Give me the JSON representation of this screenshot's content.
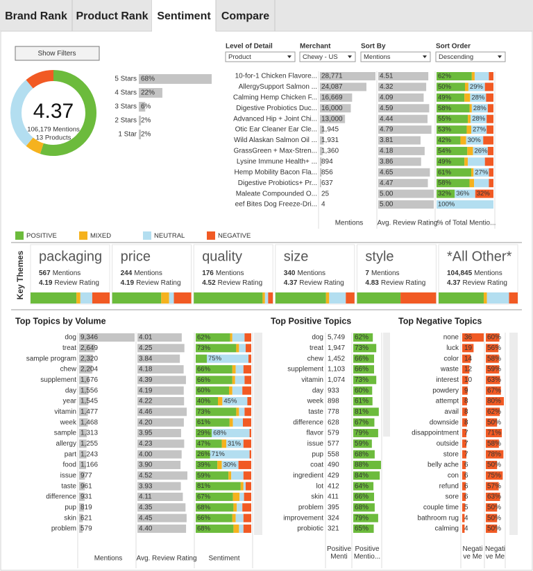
{
  "tabs": [
    "Brand Rank",
    "Product Rank",
    "Sentiment",
    "Compare"
  ],
  "active_tab": 2,
  "filters_button": "Show Filters",
  "summary": {
    "rating": 4.37,
    "mentions_text": "106,179 Mentions",
    "products_text": "13 Products",
    "sentiment": [
      55,
      6,
      28,
      11
    ]
  },
  "stars": {
    "categories": [
      "5 Stars",
      "4 Stars",
      "3 Stars",
      "2 Stars",
      "1 Star"
    ],
    "values": [
      68,
      22,
      6,
      2,
      2
    ],
    "value_labels": [
      "68%",
      "22%",
      "6%",
      "2%",
      "2%"
    ]
  },
  "filters": [
    {
      "label": "Level of Detail",
      "value": "Product"
    },
    {
      "label": "Merchant",
      "value": "Chewy - US"
    },
    {
      "label": "Sort By",
      "value": "Mentions"
    },
    {
      "label": "Sort Order",
      "value": "Descending"
    }
  ],
  "products": {
    "names": [
      "10-for-1 Chicken Flavore...",
      "AllergySupport Salmon ...",
      "Calming Hemp Chicken F...",
      "Digestive Probiotics Duc...",
      "Advanced Hip + Joint Chi...",
      "Otic Ear Cleaner Ear Cle...",
      "Wild Alaskan Salmon Oil ...",
      "GrassGreen + Max-Stren...",
      "Lysine Immune Health+ ...",
      "Hemp Mobility Bacon Fla...",
      "Digestive Probiotics+ Pr...",
      "Maleate Compounded O...",
      "eef Bites Dog Freeze-Dri..."
    ],
    "mentions": {
      "values": [
        28771,
        24087,
        16669,
        16000,
        13000,
        1945,
        1931,
        1360,
        894,
        856,
        637,
        25,
        4
      ],
      "value_labels": [
        "28,771",
        "24,087",
        "16,669",
        "16,000",
        "13,000",
        "1,945",
        "1,931",
        "1,360",
        "894",
        "856",
        "637",
        "25",
        "4"
      ]
    },
    "ratings": {
      "values": [
        4.51,
        4.32,
        4.09,
        4.59,
        4.44,
        4.79,
        3.81,
        4.18,
        3.86,
        4.65,
        4.47,
        5.0,
        5.0
      ],
      "value_labels": [
        "4.51",
        "4.32",
        "4.09",
        "4.59",
        "4.44",
        "4.79",
        "3.81",
        "4.18",
        "3.86",
        "4.65",
        "4.47",
        "5.00",
        "5.00"
      ]
    },
    "sentiment": [
      {
        "values": [
          62,
          50,
          49,
          58,
          55,
          53,
          42,
          54,
          49,
          61,
          58,
          32,
          0
        ],
        "value_labels": [
          "62%",
          "50%",
          "49%",
          "58%",
          "55%",
          "53%",
          "42%",
          "54%",
          "49%",
          "61%",
          "58%",
          "32%",
          null
        ]
      },
      {
        "values": [
          5,
          6,
          10,
          4,
          5,
          8,
          10,
          10,
          6,
          4,
          8,
          0,
          0
        ]
      },
      {
        "values": [
          25,
          29,
          28,
          28,
          28,
          27,
          30,
          26,
          30,
          27,
          26,
          36,
          100
        ],
        "value_labels": [
          null,
          "29%",
          "28%",
          "28%",
          "28%",
          "27%",
          "30%",
          "26%",
          null,
          "27%",
          null,
          "36%",
          "100%"
        ]
      },
      {
        "values": [
          8,
          15,
          13,
          10,
          12,
          12,
          18,
          10,
          15,
          8,
          8,
          32,
          0
        ],
        "value_labels": [
          null,
          null,
          null,
          null,
          null,
          null,
          null,
          null,
          null,
          null,
          null,
          "32%",
          null
        ]
      }
    ],
    "headers": [
      "Mentions",
      "Avg. Review Rating",
      "% of Total Mentio..."
    ]
  },
  "legend": [
    {
      "name": "POSITIVE",
      "color": "#6cbb3c"
    },
    {
      "name": "MIXED",
      "color": "#f5b21e"
    },
    {
      "name": "NEUTRAL",
      "color": "#b3def0"
    },
    {
      "name": "NEGATIVE",
      "color": "#f15a24"
    }
  ],
  "themes": {
    "title": "Key Themes",
    "mentions_label": "Mentions",
    "rating_label": "Review Rating",
    "items": [
      {
        "name": "packaging",
        "mentions": 567,
        "rating": 4.19,
        "sentiment": [
          58,
          5,
          15,
          22
        ]
      },
      {
        "name": "price",
        "mentions": 244,
        "rating": 4.19,
        "sentiment": [
          62,
          10,
          6,
          22
        ]
      },
      {
        "name": "quality",
        "mentions": 176,
        "rating": 4.52,
        "sentiment": [
          87,
          3,
          4,
          6
        ]
      },
      {
        "name": "size",
        "mentions": 340,
        "rating": 4.37,
        "sentiment": [
          64,
          4,
          21,
          11
        ]
      },
      {
        "name": "style",
        "mentions": 7,
        "rating": 4.83,
        "sentiment": [
          55,
          0,
          0,
          45
        ]
      },
      {
        "name": "*All Other*",
        "mentions": 104845,
        "mentions_value_label": "104,845",
        "rating": 4.37,
        "sentiment": [
          57,
          4,
          28,
          11
        ]
      }
    ]
  },
  "volume": {
    "title": "Top Topics by Volume",
    "categories": [
      "dog",
      "treat",
      "sample program",
      "chew",
      "supplement",
      "day",
      "year",
      "vitamin",
      "week",
      "sample",
      "allergy",
      "part",
      "food",
      "issue",
      "taste",
      "difference",
      "pup",
      "skin",
      "problem"
    ],
    "mentions": {
      "values": [
        9346,
        2649,
        2320,
        2204,
        1676,
        1556,
        1545,
        1477,
        1468,
        1313,
        1255,
        1243,
        1166,
        977,
        961,
        931,
        819,
        621,
        579
      ],
      "value_labels": [
        "9,346",
        "2,649",
        "2,320",
        "2,204",
        "1,676",
        "1,556",
        "1,545",
        "1,477",
        "1,468",
        "1,313",
        "1,255",
        "1,243",
        "1,166",
        "977",
        "961",
        "931",
        "819",
        "621",
        "579"
      ]
    },
    "ratings": {
      "values": [
        4.01,
        4.25,
        3.84,
        4.18,
        4.39,
        4.19,
        4.22,
        4.46,
        4.2,
        3.95,
        4.23,
        4.0,
        3.9,
        4.52,
        3.93,
        4.11,
        4.35,
        4.45,
        4.4
      ],
      "value_labels": [
        "4.01",
        "4.25",
        "3.84",
        "4.18",
        "4.39",
        "4.19",
        "4.22",
        "4.46",
        "4.20",
        "3.95",
        "4.23",
        "4.00",
        "3.90",
        "4.52",
        "3.93",
        "4.11",
        "4.35",
        "4.45",
        "4.40"
      ]
    },
    "sentiment": [
      {
        "values": [
          62,
          73,
          20,
          66,
          66,
          60,
          40,
          73,
          61,
          29,
          47,
          26,
          39,
          59,
          81,
          67,
          68,
          66,
          68
        ],
        "value_labels": [
          "62%",
          "73%",
          null,
          "66%",
          "66%",
          "60%",
          "40%",
          "73%",
          "61%",
          "29%",
          "47%",
          "26%",
          "39%",
          "59%",
          "81%",
          "67%",
          "68%",
          "66%",
          "68%"
        ]
      },
      {
        "values": [
          4,
          5,
          0,
          6,
          5,
          6,
          8,
          5,
          6,
          0,
          8,
          0,
          8,
          5,
          5,
          12,
          6,
          6,
          10
        ]
      },
      {
        "values": [
          22,
          12,
          75,
          14,
          17,
          18,
          45,
          10,
          18,
          68,
          31,
          71,
          30,
          22,
          4,
          8,
          10,
          14,
          8
        ],
        "value_labels": [
          null,
          null,
          "75%",
          null,
          null,
          null,
          "45%",
          null,
          null,
          "68%",
          "31%",
          "71%",
          "30%",
          null,
          null,
          null,
          null,
          null,
          null
        ]
      },
      {
        "values": [
          12,
          10,
          5,
          14,
          12,
          16,
          7,
          12,
          15,
          3,
          14,
          3,
          23,
          14,
          10,
          13,
          16,
          14,
          14
        ]
      }
    ],
    "headers": [
      "Mentions",
      "Avg. Review Rating",
      "Sentiment"
    ]
  },
  "positive": {
    "title": "Top Positive Topics",
    "categories": [
      "dog",
      "treat",
      "chew",
      "supplement",
      "vitamin",
      "day",
      "week",
      "taste",
      "difference",
      "flavor",
      "issue",
      "pup",
      "coat",
      "ingredient",
      "lot",
      "skin",
      "problem",
      "improvement",
      "probiotic"
    ],
    "mentions": {
      "values": [
        5749,
        1947,
        1452,
        1103,
        1074,
        933,
        898,
        778,
        628,
        579,
        577,
        558,
        490,
        429,
        412,
        411,
        395,
        324,
        321
      ],
      "value_labels": [
        "5,749",
        "1,947",
        "1,452",
        "1,103",
        "1,074",
        "933",
        "898",
        "778",
        "628",
        "579",
        "577",
        "558",
        "490",
        "429",
        "412",
        "411",
        "395",
        "324",
        "321"
      ]
    },
    "share": {
      "values": [
        62,
        73,
        66,
        66,
        73,
        60,
        61,
        81,
        67,
        79,
        59,
        68,
        88,
        84,
        64,
        66,
        68,
        79,
        65
      ],
      "value_labels": [
        "62%",
        "73%",
        "66%",
        "66%",
        "73%",
        "60%",
        "61%",
        "81%",
        "67%",
        "79%",
        "59%",
        "68%",
        "88%",
        "84%",
        "64%",
        "66%",
        "68%",
        "79%",
        "65%"
      ]
    },
    "headers": [
      "Positive Mentio...",
      "Positive Mentio..."
    ]
  },
  "negative": {
    "title": "Top Negative Topics",
    "categories": [
      "none",
      "luck",
      "color",
      "waste",
      "interest",
      "powdery",
      "attempt",
      "avail",
      "downside",
      "disappointment",
      "outside",
      "store",
      "belly ache",
      "con",
      "refund",
      "sore",
      "couple time",
      "bathroom rug",
      "calming"
    ],
    "mentions": {
      "values": [
        36,
        19,
        14,
        12,
        10,
        9,
        8,
        8,
        8,
        7,
        7,
        7,
        6,
        6,
        6,
        6,
        5,
        4,
        4
      ]
    },
    "share": {
      "values": [
        60,
        56,
        58,
        59,
        63,
        67,
        80,
        62,
        50,
        71,
        58,
        78,
        50,
        75,
        57,
        63,
        50,
        50,
        50
      ],
      "value_labels": [
        "60%",
        "56%",
        "58%",
        "59%",
        "63%",
        "67%",
        "80%",
        "62%",
        "50%",
        "71%",
        "58%",
        "78%",
        "50%",
        "75%",
        "57%",
        "63%",
        "50%",
        "50%",
        "50%"
      ]
    },
    "headers": [
      "Negative Men...",
      "Negative Men..."
    ]
  }
}
